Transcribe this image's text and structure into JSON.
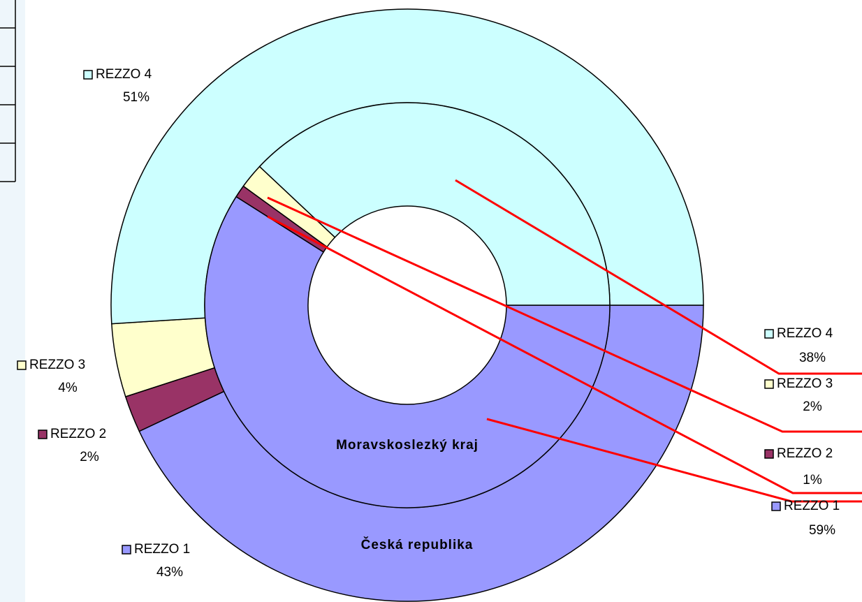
{
  "chart_data": {
    "type": "donut",
    "categories": [
      "REZZO 1",
      "REZZO 2",
      "REZZO 3",
      "REZZO 4"
    ],
    "colors": [
      "#9999ff",
      "#993366",
      "#ffffcc",
      "#ccffff"
    ],
    "series": [
      {
        "name": "Česká republika",
        "values": [
          43,
          2,
          4,
          51
        ],
        "value_labels": [
          "43%",
          "2%",
          "4%",
          "51%"
        ]
      },
      {
        "name": "Moravskoslezký kraj",
        "values": [
          59,
          1,
          2,
          38
        ],
        "value_labels": [
          "59%",
          "1%",
          "2%",
          "38%"
        ]
      }
    ]
  }
}
